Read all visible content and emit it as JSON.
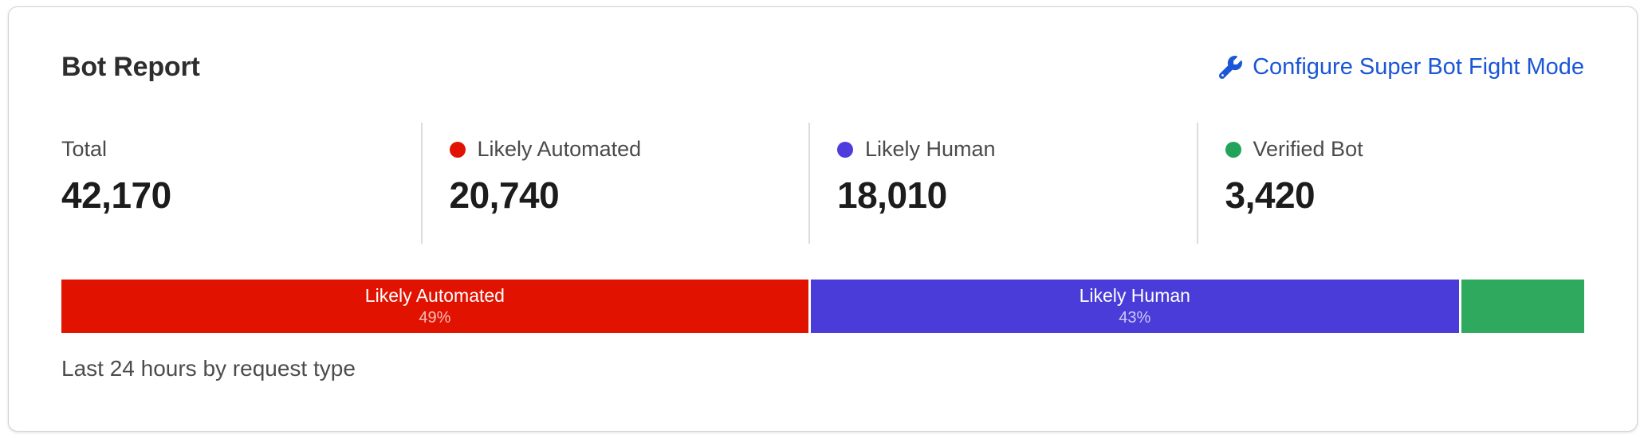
{
  "card": {
    "title": "Bot Report",
    "action": {
      "label": "Configure Super Bot Fight Mode",
      "icon": "wrench-icon",
      "color": "#1a56d6"
    },
    "caption": "Last 24 hours by request type"
  },
  "stats": {
    "items": [
      {
        "label": "Total",
        "value": "42,170",
        "dot_color": ""
      },
      {
        "label": "Likely Automated",
        "value": "20,740",
        "dot_color": "#e11300"
      },
      {
        "label": "Likely Human",
        "value": "18,010",
        "dot_color": "#4e3cdc"
      },
      {
        "label": "Verified Bot",
        "value": "3,420",
        "dot_color": "#21a45a"
      }
    ]
  },
  "chart_data": {
    "type": "bar",
    "stacked": true,
    "orientation": "horizontal",
    "title": "Bot Report",
    "caption": "Last 24 hours by request type",
    "total": 42170,
    "segments": [
      {
        "name": "Likely Automated",
        "value": 20740,
        "percent": 49.2,
        "color": "#e11300",
        "bar_label": "Likely Automated",
        "bar_sublabel": "49%"
      },
      {
        "name": "Likely Human",
        "value": 18010,
        "percent": 42.7,
        "color": "#4a3cd8",
        "bar_label": "Likely Human",
        "bar_sublabel": "43%"
      },
      {
        "name": "Verified Bot",
        "value": 3420,
        "percent": 8.1,
        "color": "#2fa95d",
        "bar_label": "",
        "bar_sublabel": ""
      }
    ]
  }
}
